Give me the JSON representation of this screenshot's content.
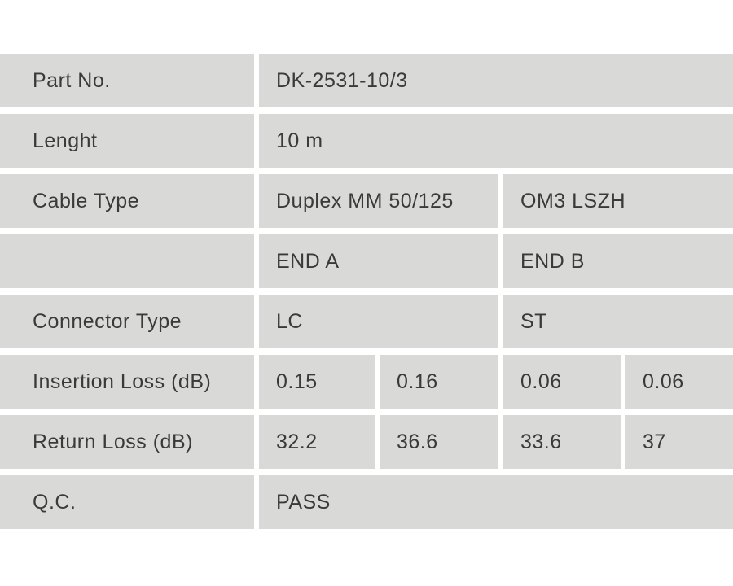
{
  "colors": {
    "page_background": "#ffffff",
    "cell_background": "#d9dad8",
    "divider": "#ffffff",
    "text": "#3a3a3a"
  },
  "table": {
    "rows": [
      {
        "label": "Part No.",
        "value": "DK-2531-10/3"
      },
      {
        "label": "Lenght",
        "value": "10 m"
      },
      {
        "label": "Cable Type",
        "col_a": "Duplex MM 50/125",
        "col_b": "OM3 LSZH"
      },
      {
        "label": "",
        "col_a": "END A",
        "col_b": "END B"
      },
      {
        "label": "Connector Type",
        "col_a": "LC",
        "col_b": "ST"
      },
      {
        "label": "Insertion Loss (dB)",
        "values": [
          "0.15",
          "0.16",
          "0.06",
          "0.06"
        ]
      },
      {
        "label": "Return Loss (dB)",
        "values": [
          "32.2",
          "36.6",
          "33.6",
          "37"
        ]
      },
      {
        "label": "Q.C.",
        "value": "PASS"
      }
    ]
  }
}
